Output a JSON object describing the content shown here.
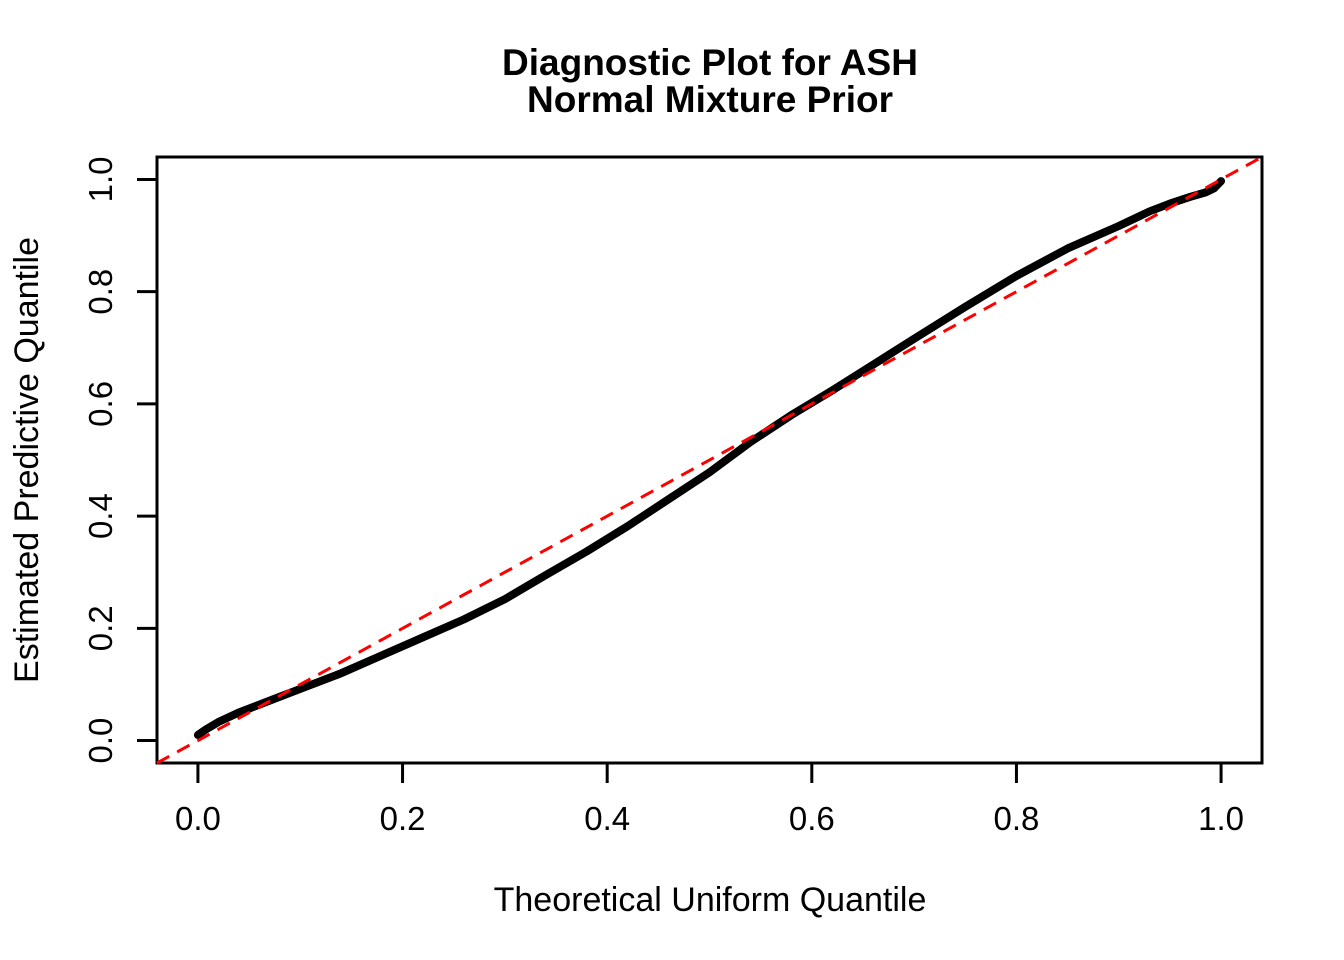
{
  "figure": {
    "background_color": "#FFFFFF",
    "frame_color": "#000000"
  },
  "chart_data": {
    "type": "line",
    "title_lines": [
      "Diagnostic Plot for ASH",
      "Normal Mixture Prior"
    ],
    "xlabel": "Theoretical Uniform Quantile",
    "ylabel": "Estimated Predictive Quantile",
    "xlim": [
      -0.04,
      1.04
    ],
    "ylim": [
      -0.04,
      1.04
    ],
    "grid": false,
    "legend": "none",
    "x_ticks": {
      "values": [
        0.0,
        0.2,
        0.4,
        0.6,
        0.8,
        1.0
      ],
      "labels": [
        "0.0",
        "0.2",
        "0.4",
        "0.6",
        "0.8",
        "1.0"
      ]
    },
    "y_ticks": {
      "values": [
        0.0,
        0.2,
        0.4,
        0.6,
        0.8,
        1.0
      ],
      "labels": [
        "0.0",
        "0.2",
        "0.4",
        "0.6",
        "0.8",
        "1.0"
      ]
    },
    "series": [
      {
        "name": "estimated-predictive-quantile-curve",
        "color": "#000000",
        "dash": "solid",
        "stroke_width": 8,
        "points": [
          [
            0.0,
            0.01
          ],
          [
            0.008,
            0.02
          ],
          [
            0.02,
            0.033
          ],
          [
            0.04,
            0.05
          ],
          [
            0.06,
            0.064
          ],
          [
            0.08,
            0.078
          ],
          [
            0.1,
            0.092
          ],
          [
            0.14,
            0.12
          ],
          [
            0.18,
            0.152
          ],
          [
            0.22,
            0.184
          ],
          [
            0.26,
            0.216
          ],
          [
            0.3,
            0.252
          ],
          [
            0.34,
            0.295
          ],
          [
            0.38,
            0.337
          ],
          [
            0.42,
            0.382
          ],
          [
            0.46,
            0.43
          ],
          [
            0.5,
            0.478
          ],
          [
            0.54,
            0.532
          ],
          [
            0.58,
            0.58
          ],
          [
            0.62,
            0.624
          ],
          [
            0.66,
            0.67
          ],
          [
            0.7,
            0.716
          ],
          [
            0.75,
            0.773
          ],
          [
            0.8,
            0.828
          ],
          [
            0.85,
            0.877
          ],
          [
            0.9,
            0.917
          ],
          [
            0.93,
            0.943
          ],
          [
            0.95,
            0.957
          ],
          [
            0.97,
            0.969
          ],
          [
            0.985,
            0.977
          ],
          [
            0.993,
            0.984
          ],
          [
            1.0,
            0.997
          ]
        ]
      },
      {
        "name": "y-equals-x-reference-line",
        "color": "#FF0000",
        "dash": "dashed",
        "stroke_width": 3,
        "points": [
          [
            -0.04,
            -0.04
          ],
          [
            1.04,
            1.04
          ]
        ]
      }
    ]
  }
}
